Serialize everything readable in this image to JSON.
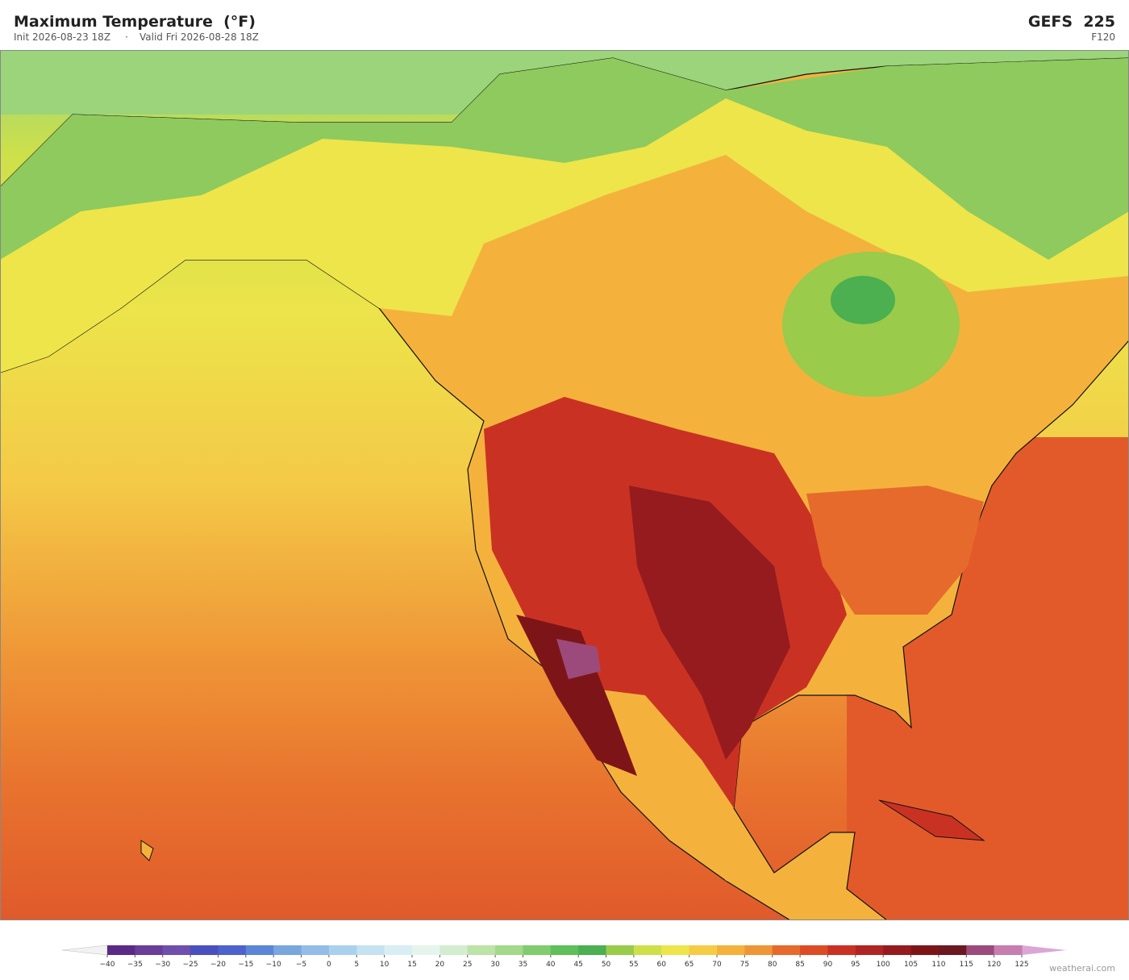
{
  "header": {
    "title": "Maximum Temperature  (°F)",
    "init": "Init 2026-08-23 18Z",
    "valid": "Valid Fri 2026-08-28 18Z",
    "model": "GEFS  225",
    "forecast_hour": "F120"
  },
  "colorbar": {
    "under_color": "#f2f2f2",
    "over_color": "#dba6d6",
    "colors": [
      "#5b2a86",
      "#6a3d9a",
      "#6f4fae",
      "#4a4fbf",
      "#4d62cc",
      "#5b86d6",
      "#79a6dc",
      "#93bde6",
      "#a9d1ec",
      "#c4e2f0",
      "#d9eef4",
      "#e6f4ee",
      "#d4ecd0",
      "#bde3a6",
      "#a3d98a",
      "#80cc6e",
      "#5fbf5a",
      "#4caf50",
      "#9acb4a",
      "#cde04a",
      "#ede54a",
      "#f6cc44",
      "#f4b23d",
      "#ef9536",
      "#e66a2c",
      "#dd4b26",
      "#c93223",
      "#b02523",
      "#951b1e",
      "#7d1518",
      "#6b1820",
      "#9c4a7b",
      "#c77db0"
    ],
    "ticks": [
      {
        "value": -40,
        "label": "−40"
      },
      {
        "value": -35,
        "label": "−35"
      },
      {
        "value": -30,
        "label": "−30"
      },
      {
        "value": -25,
        "label": "−25"
      },
      {
        "value": -20,
        "label": "−20"
      },
      {
        "value": -15,
        "label": "−15"
      },
      {
        "value": -10,
        "label": "−10"
      },
      {
        "value": -5,
        "label": "−5"
      },
      0,
      5,
      10,
      15,
      20,
      25,
      30,
      35,
      40,
      45,
      50,
      55,
      60,
      65,
      70,
      75,
      80,
      85,
      90,
      95,
      100,
      105,
      110,
      115,
      120,
      125
    ]
  },
  "watermark": "weatherai.com"
}
